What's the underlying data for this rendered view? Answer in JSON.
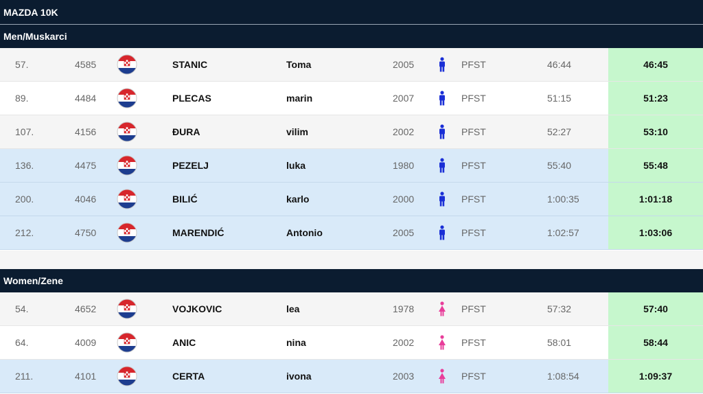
{
  "race_title": "MAZDA 10K",
  "colors": {
    "header_bg": "#0b1c30",
    "time_highlight": "#c6f7cd",
    "row_blue": "#d9eaf9",
    "male_icon": "#1a2fd6",
    "female_icon": "#e83d9a"
  },
  "sections": [
    {
      "title": "Men/Muskarci",
      "gender_icon": "male-icon",
      "rows": [
        {
          "pos": "57.",
          "bib": "4585",
          "flag": "croatia-flag",
          "last": "STANIC",
          "first": "Toma",
          "year": "2005",
          "club": "PFST",
          "net": "46:44",
          "gun": "46:45",
          "style": "gray"
        },
        {
          "pos": "89.",
          "bib": "4484",
          "flag": "croatia-flag",
          "last": "PLECAS",
          "first": "marin",
          "year": "2007",
          "club": "PFST",
          "net": "51:15",
          "gun": "51:23",
          "style": "white"
        },
        {
          "pos": "107.",
          "bib": "4156",
          "flag": "croatia-flag",
          "last": "ĐURA",
          "first": "vilim",
          "year": "2002",
          "club": "PFST",
          "net": "52:27",
          "gun": "53:10",
          "style": "gray"
        },
        {
          "pos": "136.",
          "bib": "4475",
          "flag": "croatia-flag",
          "last": "PEZELJ",
          "first": "luka",
          "year": "1980",
          "club": "PFST",
          "net": "55:40",
          "gun": "55:48",
          "style": "blue"
        },
        {
          "pos": "200.",
          "bib": "4046",
          "flag": "croatia-flag",
          "last": "BILIĆ",
          "first": "karlo",
          "year": "2000",
          "club": "PFST",
          "net": "1:00:35",
          "gun": "1:01:18",
          "style": "blue"
        },
        {
          "pos": "212.",
          "bib": "4750",
          "flag": "croatia-flag",
          "last": "MARENDIĆ",
          "first": "Antonio",
          "year": "2005",
          "club": "PFST",
          "net": "1:02:57",
          "gun": "1:03:06",
          "style": "blue"
        }
      ]
    },
    {
      "title": "Women/Zene",
      "gender_icon": "female-icon",
      "rows": [
        {
          "pos": "54.",
          "bib": "4652",
          "flag": "croatia-flag",
          "last": "VOJKOVIC",
          "first": "lea",
          "year": "1978",
          "club": "PFST",
          "net": "57:32",
          "gun": "57:40",
          "style": "gray"
        },
        {
          "pos": "64.",
          "bib": "4009",
          "flag": "croatia-flag",
          "last": "ANIC",
          "first": "nina",
          "year": "2002",
          "club": "PFST",
          "net": "58:01",
          "gun": "58:44",
          "style": "white"
        },
        {
          "pos": "211.",
          "bib": "4101",
          "flag": "croatia-flag",
          "last": "CERTA",
          "first": "ivona",
          "year": "2003",
          "club": "PFST",
          "net": "1:08:54",
          "gun": "1:09:37",
          "style": "blue"
        }
      ]
    }
  ]
}
